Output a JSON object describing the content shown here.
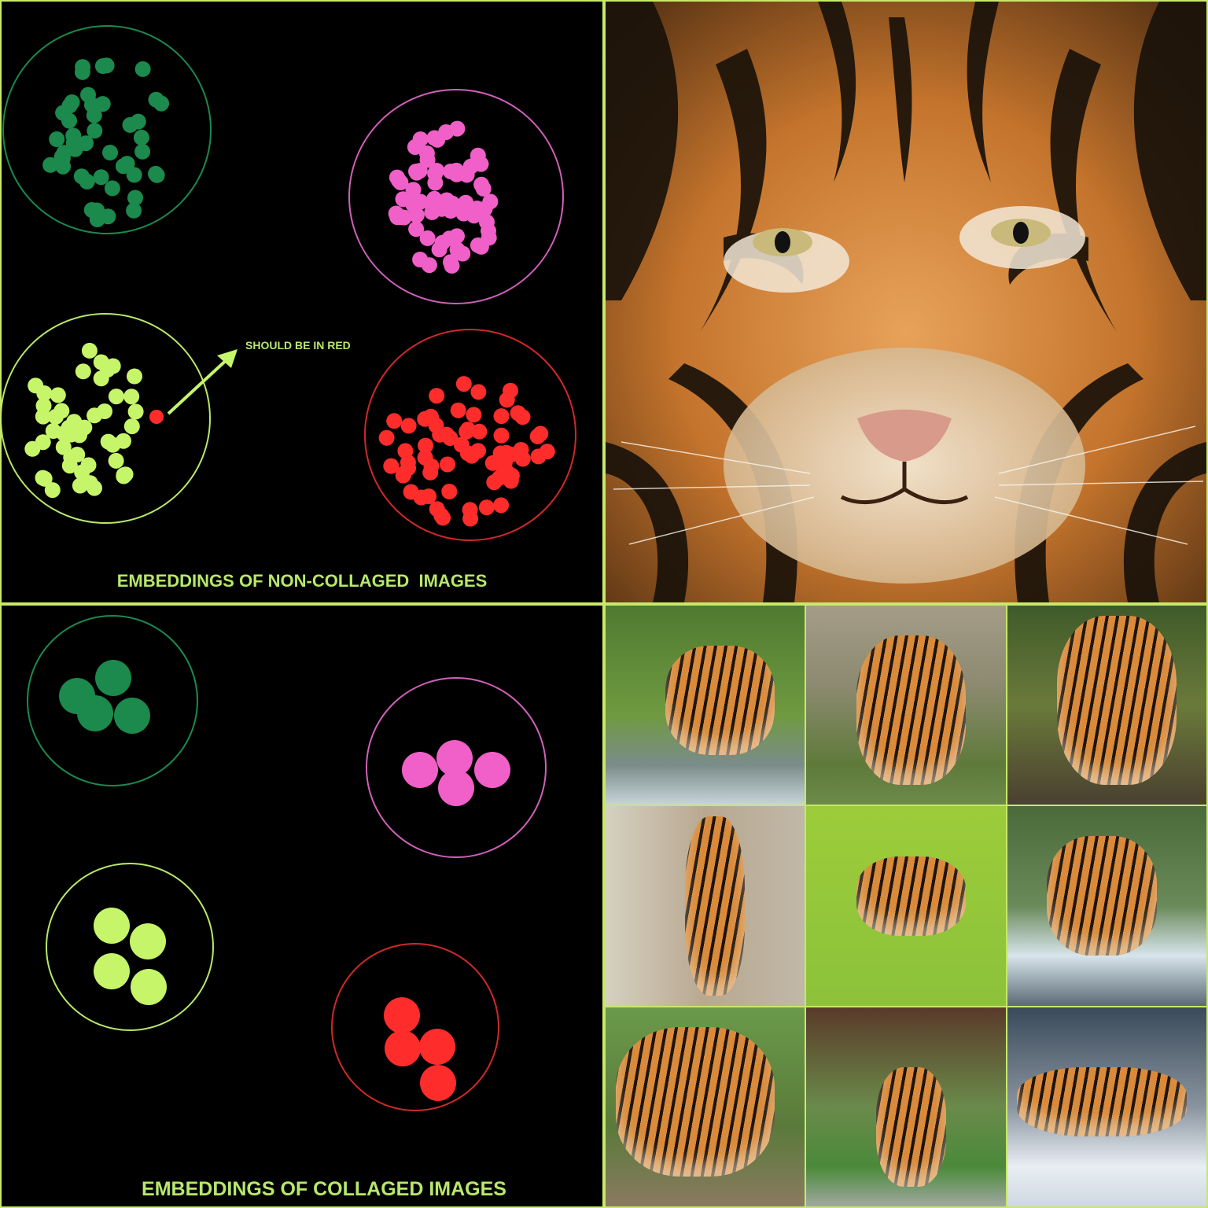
{
  "panels": {
    "non_collaged": {
      "title": "EMBEDDINGS OF NON-COLLAGED  IMAGES",
      "annotation": "SHOULD BE IN RED",
      "clusters": [
        {
          "name": "dark-green",
          "color": "#1b8a4c",
          "point_count": 46
        },
        {
          "name": "pink",
          "color": "#f060c8",
          "point_count": 70
        },
        {
          "name": "light-green",
          "color": "#c6f56a",
          "point_count": 48
        },
        {
          "name": "red",
          "color": "#ff2c2c",
          "point_count": 70
        }
      ],
      "outlier_color": "#ff2c2c",
      "arrow_color": "#c6f56a"
    },
    "collaged": {
      "title": "EMBEDDINGS OF COLLAGED IMAGES",
      "clusters": [
        {
          "name": "dark-green",
          "color": "#1b8a4c",
          "point_count": 4
        },
        {
          "name": "pink",
          "color": "#f060c8",
          "point_count": 4
        },
        {
          "name": "light-green",
          "color": "#c6f56a",
          "point_count": 4
        },
        {
          "name": "red",
          "color": "#ff2c2c",
          "point_count": 4
        }
      ]
    },
    "tiger_closeup": {
      "subject": "tiger face close-up photo"
    },
    "tiger_collage": {
      "subject": "3x3 collage of tiger photos",
      "tiles": [
        "tiger walking through stream",
        "tiger cub lying on grass",
        "tiger standing near foliage",
        "tiger standing by tree",
        "tiger in green algae water",
        "tiger leaping through water",
        "tiger walking toward camera",
        "tiger sitting on grass",
        "tiger lying on snowy rock"
      ]
    }
  },
  "colors": {
    "frame": "#c8e86a",
    "title_text": "#b8e86a",
    "dark_green": "#1b8a4c",
    "pink": "#f060c8",
    "light_green": "#c6f56a",
    "red": "#ff2c2c"
  }
}
